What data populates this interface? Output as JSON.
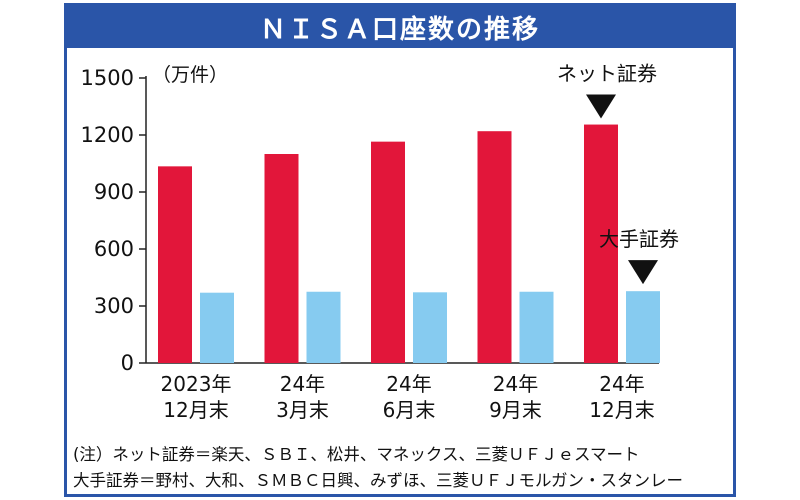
{
  "chart_data": {
    "type": "bar",
    "title": "ＮＩＳＡ口座数の推移",
    "unit_label": "（万件）",
    "categories": [
      [
        "2023年",
        "12月末"
      ],
      [
        "24年",
        "3月末"
      ],
      [
        "24年",
        "6月末"
      ],
      [
        "24年",
        "9月末"
      ],
      [
        "24年",
        "12月末"
      ]
    ],
    "series": [
      {
        "name": "ネット証券",
        "color": "#e2163a",
        "values": [
          1035,
          1100,
          1165,
          1220,
          1255
        ]
      },
      {
        "name": "大手証券",
        "color": "#86cbf0",
        "values": [
          370,
          375,
          372,
          375,
          378
        ]
      }
    ],
    "ylim": [
      0,
      1500
    ],
    "yticks": [
      0,
      300,
      600,
      900,
      1200,
      1500
    ],
    "grid": false,
    "annotations": [
      "ネット証券",
      "大手証券"
    ]
  },
  "notes": {
    "line1": "(注）ネット証券＝楽天、ＳＢＩ、松井、マネックス、三菱ＵＦＪｅスマート",
    "line2": "大手証券＝野村、大和、ＳＭＢＣ日興、みずほ、三菱ＵＦＪモルガン・スタンレー"
  },
  "colors": {
    "frame": "#2a55a8",
    "title_text": "#ffffff"
  }
}
